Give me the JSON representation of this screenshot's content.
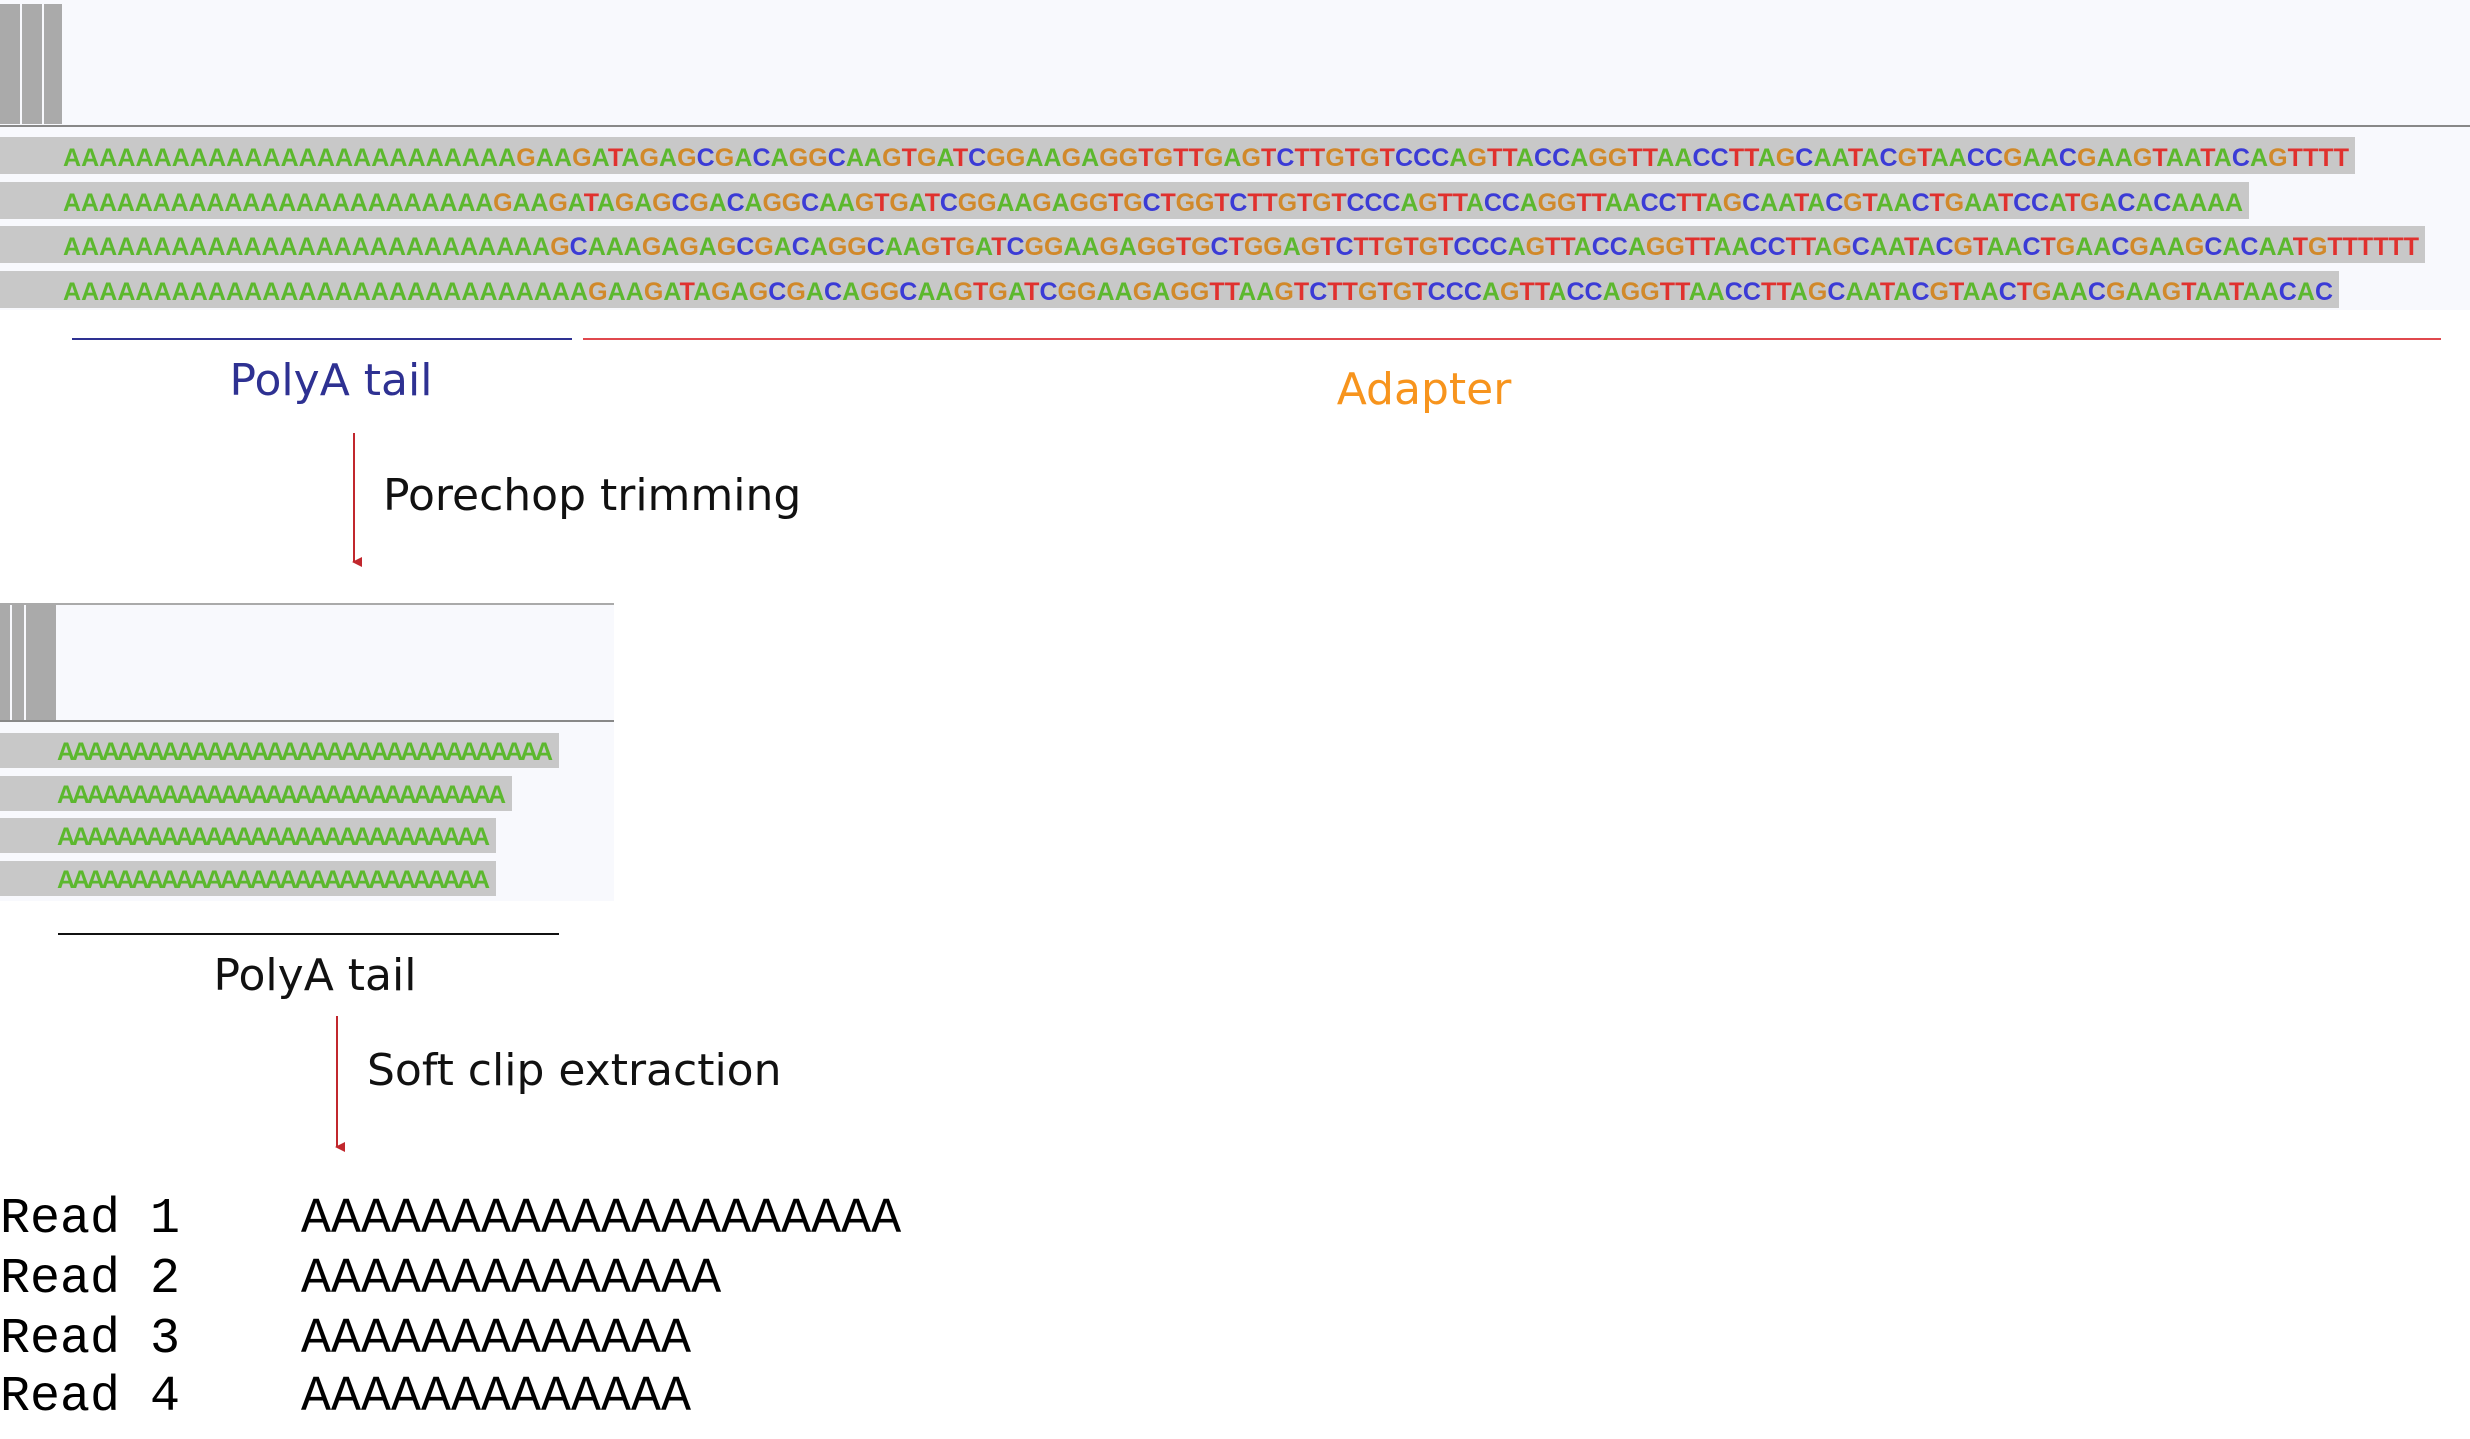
{
  "top_panel": {
    "reads": [
      "AAAAAAAAAAAAAAAAAAAAAAAAAGAAGATAGAGCGACAGGCAAGTGATCGGAAGAGGTGTTGAGTCTTGTGTCCCAGTTACCAGGTTAACCTTAGCAATACGTAACCGAACGAAGTAATACAGTTTT",
      "AAAAAAAAAAAAAAAAAAAAAAAAGAAGATAGAGCGACAGGCAAGTGATCGGAAGAGGTGCTGGTCTTGTGTCCCAGTTACCAGGTTAACCTTAGCAATACGTAACTGAATCCATGACACAAAA",
      "AAAAAAAAAAAAAAAAAAAAAAAAAAAGCAAAGAGAGCGACAGGCAAGTGATCGGAAGAGGTGCTGGAGTCTTGTGTCCCAGTTACCAGGTTAACCTTAGCAATACGTAACTGAACGAAGCACAATGTTTTTT",
      "AAAAAAAAAAAAAAAAAAAAAAAAAAAAAGAAGATAGAGCGACAGGCAAGTGATCGGAAGAGGTTAAGTCTTGTGTCCCAGTTACCAGGTTAACCTTAGCAATACGTAACTGAACGAAGTAATAACAC"
    ],
    "polya_label": "PolyA tail",
    "adapter_label": "Adapter"
  },
  "step_1": "Porechop trimming",
  "trimmed_panel": {
    "reads": [
      "AAAAAAAAAAAAAAAAAAAAAAAAAAAAAAAAA",
      "AAAAAAAAAAAAAAAAAAAAAAAAAAAAAA",
      "AAAAAAAAAAAAAAAAAAAAAAAAAAAAA",
      "AAAAAAAAAAAAAAAAAAAAAAAAAAAAA"
    ],
    "polya_label": "PolyA tail"
  },
  "step_2": "Soft clip extraction",
  "output": {
    "rows": [
      {
        "label": "Read 1",
        "sequence": "AAAAAAAAAAAAAAAAAAAA"
      },
      {
        "label": "Read 2",
        "sequence": "AAAAAAAAAAAAAA"
      },
      {
        "label": "Read 3",
        "sequence": "AAAAAAAAAAAAA"
      },
      {
        "label": "Read 4",
        "sequence": "AAAAAAAAAAAAA"
      }
    ]
  }
}
